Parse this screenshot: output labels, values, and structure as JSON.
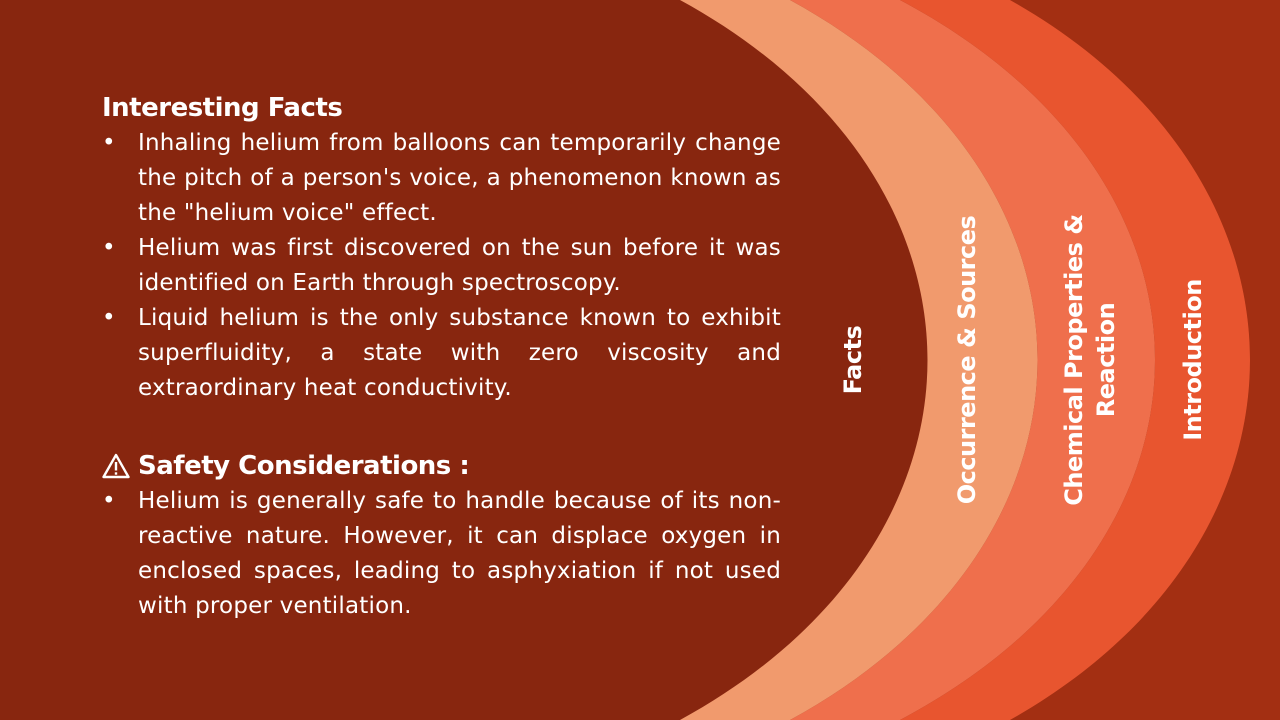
{
  "slide": {
    "colors": {
      "background": "#88260f",
      "arc_1": "#f19a6d",
      "arc_2": "#ef6f4c",
      "arc_3": "#e8552f",
      "arc_4": "#a32f12",
      "text": "#ffffff"
    },
    "interesting_facts": {
      "heading": "Interesting Facts",
      "bullet_glyph": "•",
      "items": [
        "Inhaling helium from balloons can temporarily change the pitch of a person's voice, a phenomenon known as the \"helium voice\" effect.",
        "Helium was first discovered on the sun before it was identified on Earth through spectroscopy.",
        "Liquid helium is the only substance known to exhibit superfluidity, a state with zero viscosity and extraordinary heat conductivity."
      ]
    },
    "safety": {
      "icon": "warning-icon",
      "heading": "Safety Considerations :",
      "items": [
        "Helium is generally safe to handle because of its non-reactive nature. However, it can displace oxygen in enclosed spaces, leading to asphyxiation if not used with proper ventilation."
      ]
    },
    "tabs": {
      "facts": "Facts",
      "occurrence": "Occurrence & Sources",
      "chemical_line1": "Chemical Properties &",
      "chemical_line2": "Reaction",
      "introduction": "Introduction"
    }
  }
}
